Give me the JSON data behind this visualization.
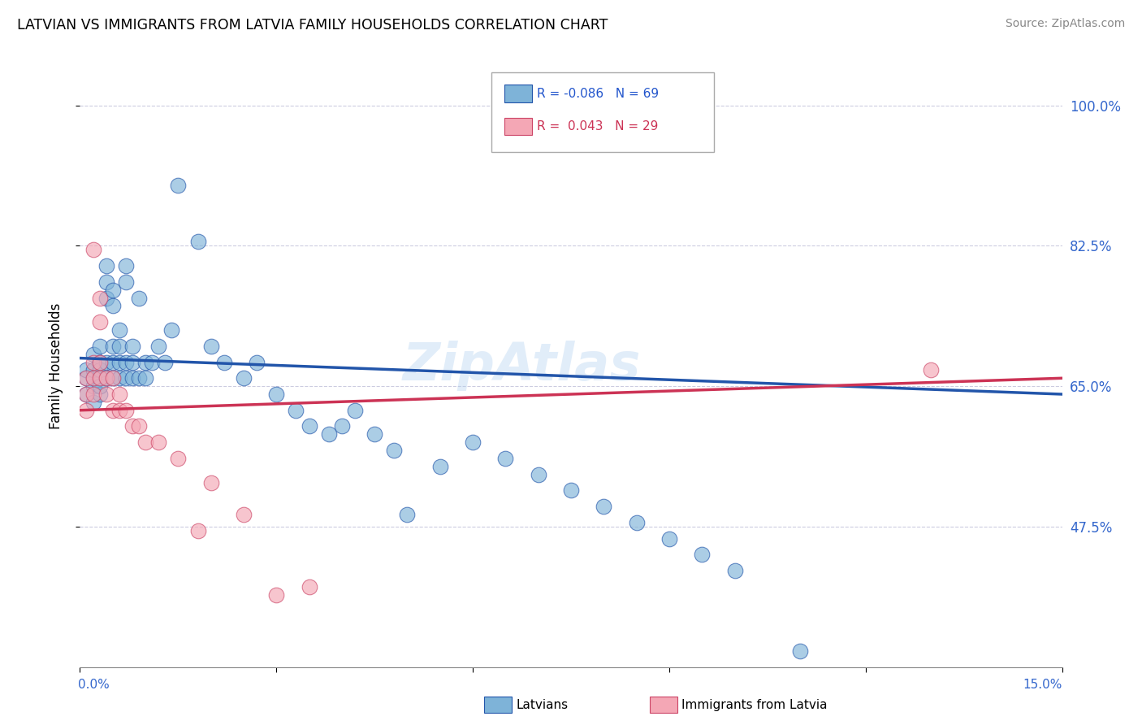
{
  "title": "LATVIAN VS IMMIGRANTS FROM LATVIA FAMILY HOUSEHOLDS CORRELATION CHART",
  "source": "Source: ZipAtlas.com",
  "ylabel": "Family Households",
  "ytick_labels": [
    "100.0%",
    "82.5%",
    "65.0%",
    "47.5%"
  ],
  "ytick_values": [
    1.0,
    0.825,
    0.65,
    0.475
  ],
  "xmin": 0.0,
  "xmax": 0.15,
  "ymin": 0.3,
  "ymax": 1.05,
  "color_blue": "#7EB3D8",
  "color_pink": "#F4A7B5",
  "trendline_blue": "#2255AA",
  "trendline_pink": "#CC3355",
  "latvians_x": [
    0.001,
    0.001,
    0.001,
    0.002,
    0.002,
    0.002,
    0.002,
    0.002,
    0.003,
    0.003,
    0.003,
    0.003,
    0.003,
    0.003,
    0.004,
    0.004,
    0.004,
    0.004,
    0.004,
    0.005,
    0.005,
    0.005,
    0.005,
    0.005,
    0.006,
    0.006,
    0.006,
    0.006,
    0.007,
    0.007,
    0.007,
    0.007,
    0.008,
    0.008,
    0.008,
    0.009,
    0.009,
    0.01,
    0.01,
    0.011,
    0.012,
    0.013,
    0.014,
    0.015,
    0.018,
    0.02,
    0.022,
    0.025,
    0.027,
    0.03,
    0.033,
    0.035,
    0.038,
    0.04,
    0.042,
    0.045,
    0.048,
    0.05,
    0.055,
    0.06,
    0.065,
    0.07,
    0.075,
    0.08,
    0.085,
    0.09,
    0.095,
    0.1,
    0.11
  ],
  "latvians_y": [
    0.66,
    0.64,
    0.67,
    0.65,
    0.66,
    0.63,
    0.67,
    0.69,
    0.64,
    0.66,
    0.68,
    0.65,
    0.67,
    0.7,
    0.76,
    0.78,
    0.8,
    0.66,
    0.68,
    0.75,
    0.77,
    0.66,
    0.68,
    0.7,
    0.66,
    0.68,
    0.7,
    0.72,
    0.78,
    0.8,
    0.66,
    0.68,
    0.66,
    0.68,
    0.7,
    0.76,
    0.66,
    0.68,
    0.66,
    0.68,
    0.7,
    0.68,
    0.72,
    0.9,
    0.83,
    0.7,
    0.68,
    0.66,
    0.68,
    0.64,
    0.62,
    0.6,
    0.59,
    0.6,
    0.62,
    0.59,
    0.57,
    0.49,
    0.55,
    0.58,
    0.56,
    0.54,
    0.52,
    0.5,
    0.48,
    0.46,
    0.44,
    0.42,
    0.32
  ],
  "immigrants_x": [
    0.001,
    0.001,
    0.001,
    0.002,
    0.002,
    0.002,
    0.002,
    0.003,
    0.003,
    0.003,
    0.003,
    0.004,
    0.004,
    0.005,
    0.005,
    0.006,
    0.006,
    0.007,
    0.008,
    0.009,
    0.01,
    0.012,
    0.015,
    0.018,
    0.02,
    0.025,
    0.03,
    0.035,
    0.13
  ],
  "immigrants_y": [
    0.66,
    0.64,
    0.62,
    0.82,
    0.66,
    0.64,
    0.68,
    0.76,
    0.73,
    0.68,
    0.66,
    0.66,
    0.64,
    0.62,
    0.66,
    0.64,
    0.62,
    0.62,
    0.6,
    0.6,
    0.58,
    0.58,
    0.56,
    0.47,
    0.53,
    0.49,
    0.39,
    0.4,
    0.67
  ]
}
